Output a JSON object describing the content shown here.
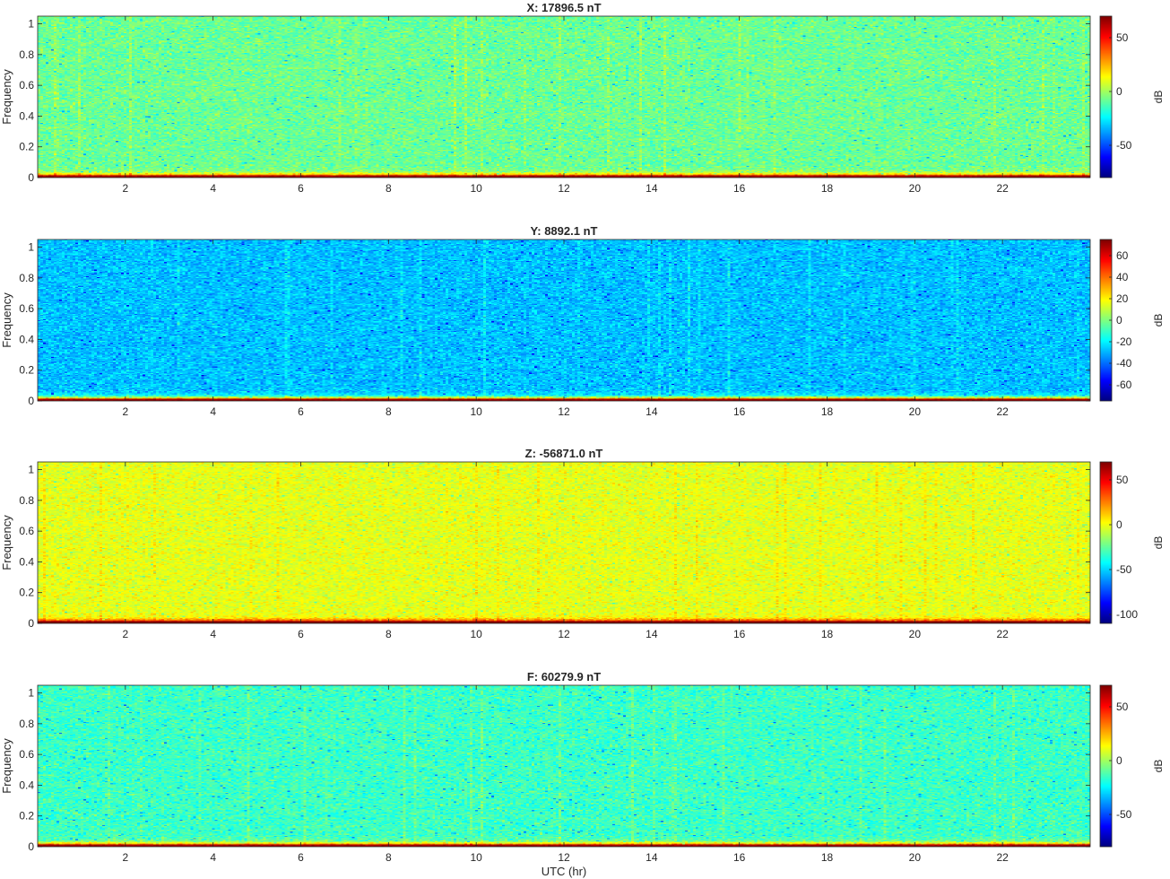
{
  "figure": {
    "xlabel": "UTC (hr)"
  },
  "chart_data": [
    {
      "type": "heatmap",
      "title": "X: 17896.5 nT",
      "ylabel": "Frequency",
      "xlim": [
        0,
        24
      ],
      "ylim": [
        0,
        1.05
      ],
      "xticks": [
        2,
        4,
        6,
        8,
        10,
        12,
        14,
        16,
        18,
        20,
        22
      ],
      "yticks": [
        0,
        0.2,
        0.4,
        0.6,
        0.8,
        1
      ],
      "colorbar": {
        "label": "dB",
        "min": -80,
        "max": 70,
        "ticks": [
          -50,
          0,
          50
        ]
      },
      "colormap": "jet",
      "background_level_db": -8,
      "low_freq_level_db": 55
    },
    {
      "type": "heatmap",
      "title": "Y: 8892.1 nT",
      "ylabel": "Frequency",
      "xlim": [
        0,
        24
      ],
      "ylim": [
        0,
        1.05
      ],
      "xticks": [
        2,
        4,
        6,
        8,
        10,
        12,
        14,
        16,
        18,
        20,
        22
      ],
      "yticks": [
        0,
        0.2,
        0.4,
        0.6,
        0.8,
        1
      ],
      "colorbar": {
        "label": "dB",
        "min": -75,
        "max": 75,
        "ticks": [
          -60,
          -40,
          -20,
          0,
          20,
          40,
          60
        ]
      },
      "colormap": "jet",
      "background_level_db": -28,
      "low_freq_level_db": 60
    },
    {
      "type": "heatmap",
      "title": "Z: -56871.0 nT",
      "ylabel": "Frequency",
      "xlim": [
        0,
        24
      ],
      "ylim": [
        0,
        1.05
      ],
      "xticks": [
        2,
        4,
        6,
        8,
        10,
        12,
        14,
        16,
        18,
        20,
        22
      ],
      "yticks": [
        0,
        0.2,
        0.4,
        0.6,
        0.8,
        1
      ],
      "colorbar": {
        "label": "dB",
        "min": -110,
        "max": 70,
        "ticks": [
          -100,
          -50,
          0,
          50
        ]
      },
      "colormap": "jet",
      "background_level_db": -2,
      "low_freq_level_db": 60
    },
    {
      "type": "heatmap",
      "title": "F: 60279.9 nT",
      "ylabel": "Frequency",
      "xlim": [
        0,
        24
      ],
      "ylim": [
        0,
        1.05
      ],
      "xticks": [
        2,
        4,
        6,
        8,
        10,
        12,
        14,
        16,
        18,
        20,
        22
      ],
      "yticks": [
        0,
        0.2,
        0.4,
        0.6,
        0.8,
        1
      ],
      "colorbar": {
        "label": "dB",
        "min": -80,
        "max": 70,
        "ticks": [
          -50,
          0,
          50
        ]
      },
      "colormap": "jet",
      "background_level_db": -15,
      "low_freq_level_db": 55
    }
  ]
}
